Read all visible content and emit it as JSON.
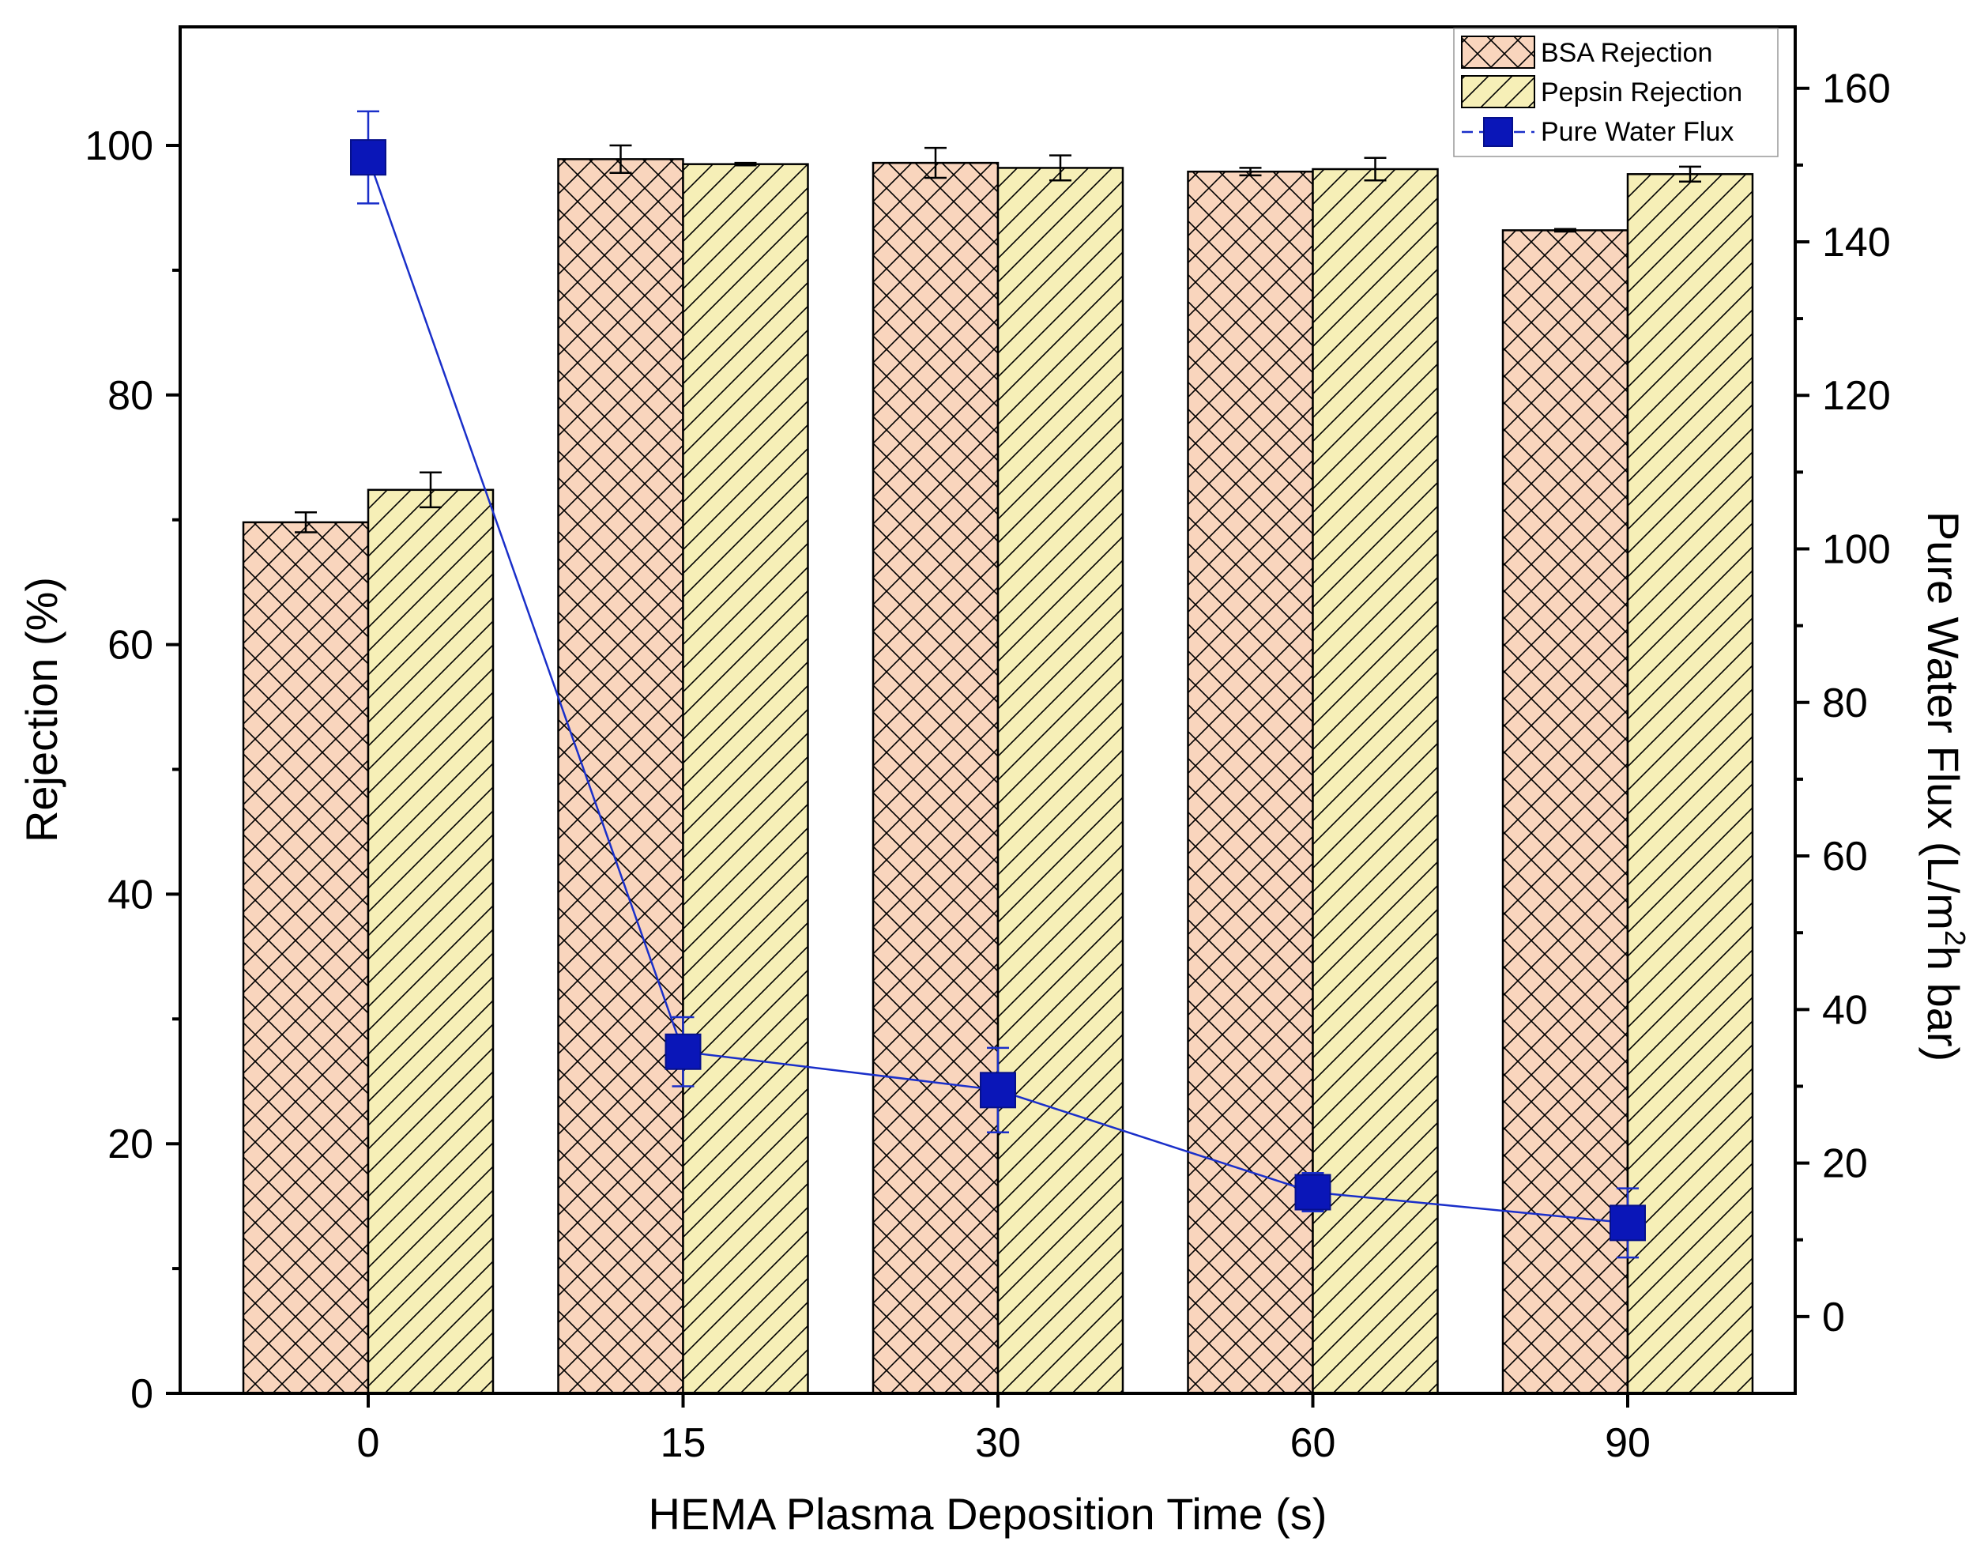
{
  "chart_data": {
    "type": "bar",
    "xlabel": "HEMA Plasma Deposition Time (s)",
    "ylabel": "Rejection (%)",
    "ylabel_right": "Pure Water Flux (L/m²h bar)",
    "ylabel_right_parts": {
      "pre": "Pure Water Flux (L/m",
      "sup": "2",
      "post": "h bar)"
    },
    "ylim": [
      0,
      109.5
    ],
    "ylim_right": [
      -10,
      168
    ],
    "yticks": [
      0,
      20,
      40,
      60,
      80,
      100
    ],
    "yticks_right": [
      0,
      20,
      40,
      60,
      80,
      100,
      120,
      140,
      160
    ],
    "categories": [
      "0",
      "15",
      "30",
      "60",
      "90"
    ],
    "series": [
      {
        "name": "BSA Rejection",
        "kind": "bar",
        "axis": "left",
        "values": [
          69.8,
          98.9,
          98.6,
          97.9,
          93.2
        ],
        "errors": [
          0.8,
          1.1,
          1.2,
          0.3,
          0.1
        ]
      },
      {
        "name": "Pepsin Rejection",
        "kind": "bar",
        "axis": "left",
        "values": [
          72.4,
          98.5,
          98.2,
          98.1,
          97.7
        ],
        "errors": [
          1.4,
          0.1,
          1.0,
          0.9,
          0.6
        ]
      },
      {
        "name": "Pure Water Flux",
        "kind": "line",
        "axis": "right",
        "values": [
          151,
          34.5,
          29.5,
          16.2,
          12.2
        ],
        "errors": [
          6,
          4.5,
          5.5,
          2.5,
          4.5
        ]
      }
    ],
    "legend_position": "top-right",
    "grid": false,
    "colors": {
      "bsa_fill": "#f9d5bd",
      "pepsin_fill": "#f6efb7",
      "flux": "#0a16b8"
    }
  }
}
